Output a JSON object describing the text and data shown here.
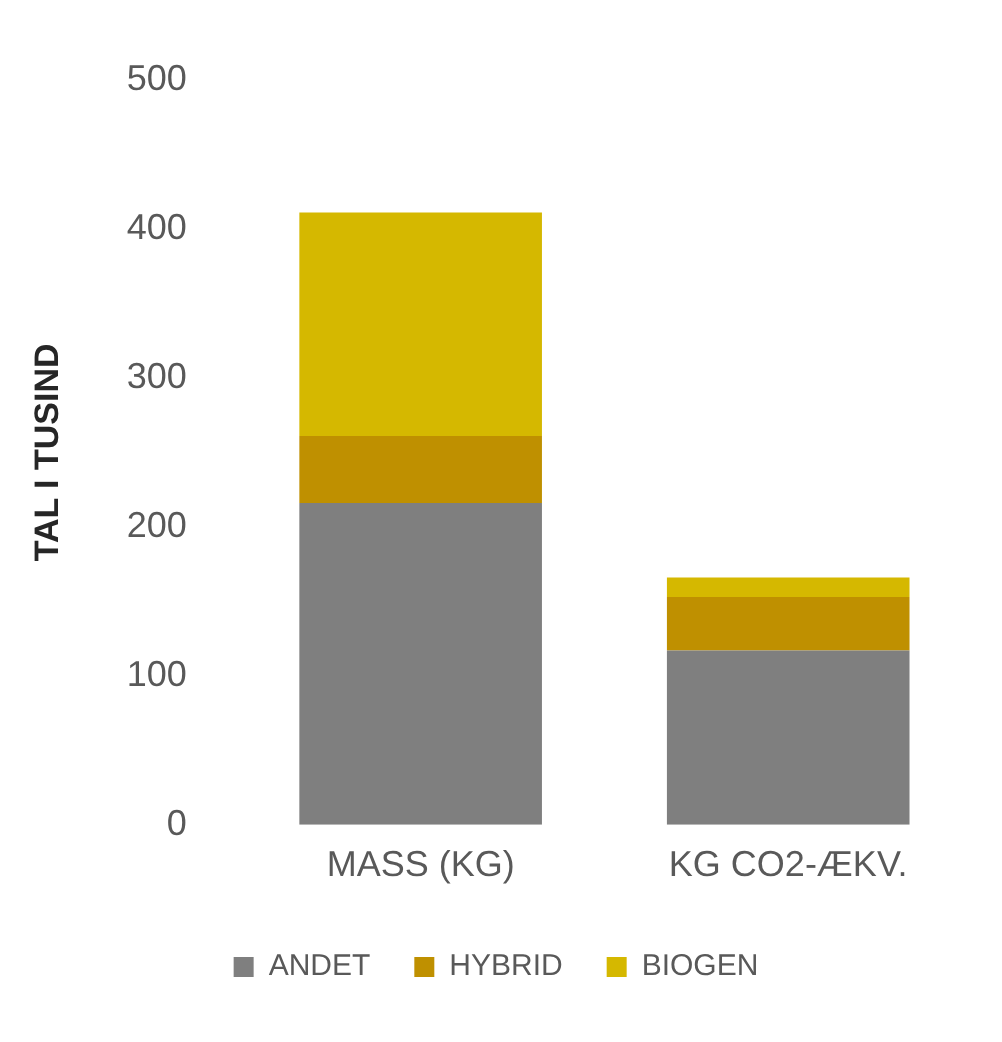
{
  "chart_data": {
    "type": "bar",
    "stacked": true,
    "ylabel": "TAL I TUSIND",
    "categories": [
      "MASS (KG)",
      "KG CO2-ÆKV."
    ],
    "series": [
      {
        "name": "ANDET",
        "color": "#7f7f7f",
        "values": [
          216,
          117
        ]
      },
      {
        "name": "HYBRID",
        "color": "#bf9000",
        "values": [
          45,
          36
        ]
      },
      {
        "name": "BIOGEN",
        "color": "#d5b800",
        "values": [
          150,
          13
        ]
      }
    ],
    "ylim": [
      0,
      500
    ],
    "yticks": [
      0,
      100,
      200,
      300,
      400,
      500
    ],
    "grid": false,
    "legend": "bottom"
  }
}
